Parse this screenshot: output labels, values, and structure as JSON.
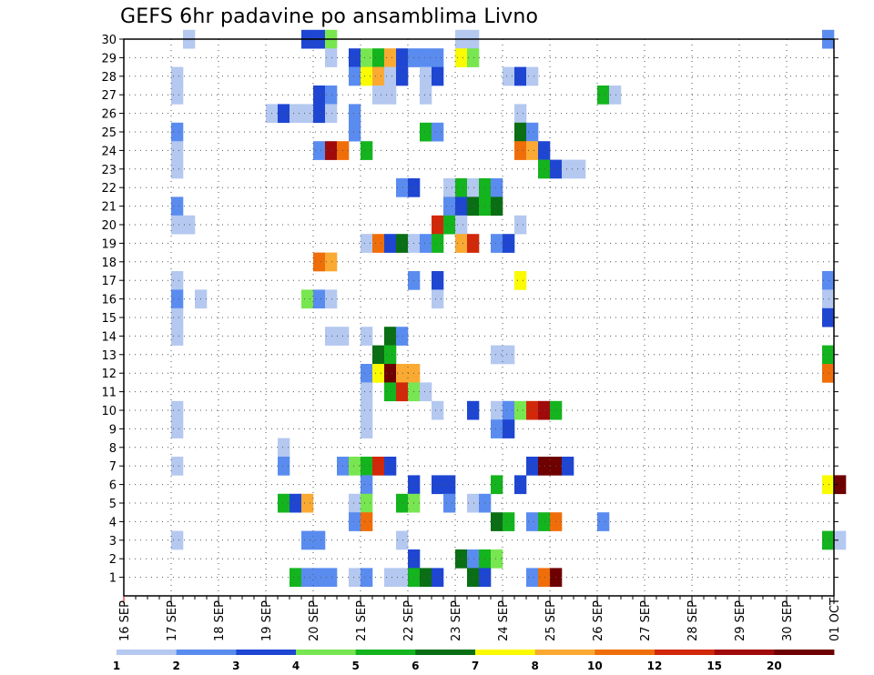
{
  "chart_data": {
    "type": "heatmap",
    "title": "GEFS 6hr padavine po ansamblima Livno",
    "xlabel": "",
    "ylabel": "",
    "x_tick_labels": [
      "16 SEP",
      "17 SEP",
      "18 SEP",
      "19 SEP",
      "20 SEP",
      "21 SEP",
      "22 SEP",
      "23 SEP",
      "24 SEP",
      "25 SEP",
      "26 SEP",
      "27 SEP",
      "28 SEP",
      "29 SEP",
      "30 SEP",
      "01 OCT"
    ],
    "y_tick_labels": [
      "1",
      "2",
      "3",
      "4",
      "5",
      "6",
      "7",
      "8",
      "9",
      "10",
      "11",
      "12",
      "13",
      "14",
      "15",
      "16",
      "17",
      "18",
      "19",
      "20",
      "21",
      "22",
      "23",
      "24",
      "25",
      "26",
      "27",
      "28",
      "29",
      "30"
    ],
    "ylim": [
      0,
      30
    ],
    "steps_per_day": 4,
    "step_hours": 6,
    "grid": "dotted",
    "colorbar": {
      "position": "bottom",
      "tick_labels": [
        "1",
        "2",
        "3",
        "4",
        "5",
        "6",
        "7",
        "8",
        "10",
        "12",
        "15",
        "20"
      ],
      "colors": [
        "#b4c8f0",
        "#5a8cf0",
        "#1e46d2",
        "#78e650",
        "#14b41e",
        "#0a6e14",
        "#fafa00",
        "#faaa32",
        "#f06e0a",
        "#d2280a",
        "#a00a0a",
        "#6e0000"
      ]
    },
    "cells": [
      {
        "member": 30,
        "step": 5,
        "level": 1
      },
      {
        "member": 30,
        "step": 15,
        "level": 3
      },
      {
        "member": 30,
        "step": 16,
        "level": 3
      },
      {
        "member": 30,
        "step": 17,
        "level": 4
      },
      {
        "member": 30,
        "step": 28,
        "level": 1
      },
      {
        "member": 30,
        "step": 29,
        "level": 1
      },
      {
        "member": 30,
        "step": 59,
        "level": 2
      },
      {
        "member": 29,
        "step": 17,
        "level": 1
      },
      {
        "member": 29,
        "step": 19,
        "level": 3
      },
      {
        "member": 29,
        "step": 20,
        "level": 4
      },
      {
        "member": 29,
        "step": 21,
        "level": 5
      },
      {
        "member": 29,
        "step": 22,
        "level": 8
      },
      {
        "member": 29,
        "step": 23,
        "level": 3
      },
      {
        "member": 29,
        "step": 24,
        "level": 2
      },
      {
        "member": 29,
        "step": 25,
        "level": 2
      },
      {
        "member": 29,
        "step": 26,
        "level": 2
      },
      {
        "member": 29,
        "step": 28,
        "level": 7
      },
      {
        "member": 29,
        "step": 29,
        "level": 4
      },
      {
        "member": 28,
        "step": 4,
        "level": 1
      },
      {
        "member": 28,
        "step": 19,
        "level": 2
      },
      {
        "member": 28,
        "step": 20,
        "level": 7
      },
      {
        "member": 28,
        "step": 21,
        "level": 8
      },
      {
        "member": 28,
        "step": 22,
        "level": 1
      },
      {
        "member": 28,
        "step": 23,
        "level": 3
      },
      {
        "member": 28,
        "step": 25,
        "level": 1
      },
      {
        "member": 28,
        "step": 26,
        "level": 3
      },
      {
        "member": 28,
        "step": 32,
        "level": 1
      },
      {
        "member": 28,
        "step": 33,
        "level": 3
      },
      {
        "member": 28,
        "step": 34,
        "level": 1
      },
      {
        "member": 27,
        "step": 4,
        "level": 1
      },
      {
        "member": 27,
        "step": 16,
        "level": 3
      },
      {
        "member": 27,
        "step": 17,
        "level": 2
      },
      {
        "member": 27,
        "step": 21,
        "level": 1
      },
      {
        "member": 27,
        "step": 22,
        "level": 1
      },
      {
        "member": 27,
        "step": 25,
        "level": 1
      },
      {
        "member": 27,
        "step": 40,
        "level": 5
      },
      {
        "member": 27,
        "step": 41,
        "level": 1
      },
      {
        "member": 26,
        "step": 12,
        "level": 1
      },
      {
        "member": 26,
        "step": 13,
        "level": 3
      },
      {
        "member": 26,
        "step": 14,
        "level": 1
      },
      {
        "member": 26,
        "step": 15,
        "level": 1
      },
      {
        "member": 26,
        "step": 16,
        "level": 3
      },
      {
        "member": 26,
        "step": 17,
        "level": 1
      },
      {
        "member": 26,
        "step": 19,
        "level": 2
      },
      {
        "member": 26,
        "step": 33,
        "level": 1
      },
      {
        "member": 25,
        "step": 4,
        "level": 2
      },
      {
        "member": 25,
        "step": 19,
        "level": 2
      },
      {
        "member": 25,
        "step": 25,
        "level": 5
      },
      {
        "member": 25,
        "step": 26,
        "level": 2
      },
      {
        "member": 25,
        "step": 33,
        "level": 6
      },
      {
        "member": 25,
        "step": 34,
        "level": 2
      },
      {
        "member": 24,
        "step": 4,
        "level": 1
      },
      {
        "member": 24,
        "step": 16,
        "level": 2
      },
      {
        "member": 24,
        "step": 17,
        "level": 11
      },
      {
        "member": 24,
        "step": 18,
        "level": 9
      },
      {
        "member": 24,
        "step": 20,
        "level": 5
      },
      {
        "member": 24,
        "step": 33,
        "level": 9
      },
      {
        "member": 24,
        "step": 34,
        "level": 8
      },
      {
        "member": 24,
        "step": 35,
        "level": 3
      },
      {
        "member": 23,
        "step": 4,
        "level": 1
      },
      {
        "member": 23,
        "step": 35,
        "level": 5
      },
      {
        "member": 23,
        "step": 36,
        "level": 3
      },
      {
        "member": 23,
        "step": 37,
        "level": 1
      },
      {
        "member": 23,
        "step": 38,
        "level": 1
      },
      {
        "member": 22,
        "step": 23,
        "level": 2
      },
      {
        "member": 22,
        "step": 24,
        "level": 3
      },
      {
        "member": 22,
        "step": 27,
        "level": 1
      },
      {
        "member": 22,
        "step": 28,
        "level": 5
      },
      {
        "member": 22,
        "step": 29,
        "level": 1
      },
      {
        "member": 22,
        "step": 30,
        "level": 5
      },
      {
        "member": 22,
        "step": 31,
        "level": 2
      },
      {
        "member": 21,
        "step": 4,
        "level": 2
      },
      {
        "member": 21,
        "step": 27,
        "level": 2
      },
      {
        "member": 21,
        "step": 28,
        "level": 3
      },
      {
        "member": 21,
        "step": 29,
        "level": 6
      },
      {
        "member": 21,
        "step": 30,
        "level": 5
      },
      {
        "member": 21,
        "step": 31,
        "level": 6
      },
      {
        "member": 20,
        "step": 4,
        "level": 1
      },
      {
        "member": 20,
        "step": 5,
        "level": 1
      },
      {
        "member": 20,
        "step": 26,
        "level": 10
      },
      {
        "member": 20,
        "step": 27,
        "level": 5
      },
      {
        "member": 20,
        "step": 28,
        "level": 1
      },
      {
        "member": 20,
        "step": 33,
        "level": 1
      },
      {
        "member": 19,
        "step": 20,
        "level": 1
      },
      {
        "member": 19,
        "step": 21,
        "level": 9
      },
      {
        "member": 19,
        "step": 22,
        "level": 3
      },
      {
        "member": 19,
        "step": 23,
        "level": 6
      },
      {
        "member": 19,
        "step": 24,
        "level": 1
      },
      {
        "member": 19,
        "step": 25,
        "level": 2
      },
      {
        "member": 19,
        "step": 26,
        "level": 5
      },
      {
        "member": 19,
        "step": 28,
        "level": 8
      },
      {
        "member": 19,
        "step": 29,
        "level": 10
      },
      {
        "member": 19,
        "step": 31,
        "level": 2
      },
      {
        "member": 19,
        "step": 32,
        "level": 3
      },
      {
        "member": 18,
        "step": 16,
        "level": 9
      },
      {
        "member": 18,
        "step": 17,
        "level": 8
      },
      {
        "member": 17,
        "step": 4,
        "level": 1
      },
      {
        "member": 17,
        "step": 24,
        "level": 2
      },
      {
        "member": 17,
        "step": 26,
        "level": 3
      },
      {
        "member": 17,
        "step": 33,
        "level": 7
      },
      {
        "member": 17,
        "step": 59,
        "level": 2
      },
      {
        "member": 16,
        "step": 4,
        "level": 2
      },
      {
        "member": 16,
        "step": 6,
        "level": 1
      },
      {
        "member": 16,
        "step": 15,
        "level": 4
      },
      {
        "member": 16,
        "step": 16,
        "level": 2
      },
      {
        "member": 16,
        "step": 17,
        "level": 1
      },
      {
        "member": 16,
        "step": 26,
        "level": 1
      },
      {
        "member": 16,
        "step": 59,
        "level": 1
      },
      {
        "member": 15,
        "step": 4,
        "level": 1
      },
      {
        "member": 15,
        "step": 59,
        "level": 3
      },
      {
        "member": 14,
        "step": 4,
        "level": 1
      },
      {
        "member": 14,
        "step": 17,
        "level": 1
      },
      {
        "member": 14,
        "step": 18,
        "level": 1
      },
      {
        "member": 14,
        "step": 20,
        "level": 1
      },
      {
        "member": 14,
        "step": 22,
        "level": 6
      },
      {
        "member": 14,
        "step": 23,
        "level": 2
      },
      {
        "member": 13,
        "step": 21,
        "level": 6
      },
      {
        "member": 13,
        "step": 22,
        "level": 5
      },
      {
        "member": 13,
        "step": 31,
        "level": 1
      },
      {
        "member": 13,
        "step": 32,
        "level": 1
      },
      {
        "member": 13,
        "step": 59,
        "level": 5
      },
      {
        "member": 12,
        "step": 20,
        "level": 2
      },
      {
        "member": 12,
        "step": 21,
        "level": 7
      },
      {
        "member": 12,
        "step": 22,
        "level": 12
      },
      {
        "member": 12,
        "step": 23,
        "level": 8
      },
      {
        "member": 12,
        "step": 24,
        "level": 8
      },
      {
        "member": 12,
        "step": 59,
        "level": 9
      },
      {
        "member": 11,
        "step": 20,
        "level": 1
      },
      {
        "member": 11,
        "step": 22,
        "level": 5
      },
      {
        "member": 11,
        "step": 23,
        "level": 10
      },
      {
        "member": 11,
        "step": 24,
        "level": 4
      },
      {
        "member": 11,
        "step": 25,
        "level": 1
      },
      {
        "member": 10,
        "step": 4,
        "level": 1
      },
      {
        "member": 10,
        "step": 20,
        "level": 1
      },
      {
        "member": 10,
        "step": 26,
        "level": 1
      },
      {
        "member": 10,
        "step": 29,
        "level": 3
      },
      {
        "member": 10,
        "step": 31,
        "level": 1
      },
      {
        "member": 10,
        "step": 32,
        "level": 2
      },
      {
        "member": 10,
        "step": 33,
        "level": 4
      },
      {
        "member": 10,
        "step": 34,
        "level": 10
      },
      {
        "member": 10,
        "step": 35,
        "level": 11
      },
      {
        "member": 10,
        "step": 36,
        "level": 5
      },
      {
        "member": 9,
        "step": 4,
        "level": 1
      },
      {
        "member": 9,
        "step": 20,
        "level": 1
      },
      {
        "member": 9,
        "step": 31,
        "level": 2
      },
      {
        "member": 9,
        "step": 32,
        "level": 3
      },
      {
        "member": 8,
        "step": 13,
        "level": 1
      },
      {
        "member": 7,
        "step": 4,
        "level": 1
      },
      {
        "member": 7,
        "step": 13,
        "level": 2
      },
      {
        "member": 7,
        "step": 18,
        "level": 2
      },
      {
        "member": 7,
        "step": 19,
        "level": 4
      },
      {
        "member": 7,
        "step": 20,
        "level": 5
      },
      {
        "member": 7,
        "step": 21,
        "level": 10
      },
      {
        "member": 7,
        "step": 22,
        "level": 3
      },
      {
        "member": 7,
        "step": 34,
        "level": 3
      },
      {
        "member": 7,
        "step": 35,
        "level": 12
      },
      {
        "member": 7,
        "step": 36,
        "level": 12
      },
      {
        "member": 7,
        "step": 37,
        "level": 3
      },
      {
        "member": 6,
        "step": 20,
        "level": 2
      },
      {
        "member": 6,
        "step": 24,
        "level": 3
      },
      {
        "member": 6,
        "step": 26,
        "level": 3
      },
      {
        "member": 6,
        "step": 27,
        "level": 3
      },
      {
        "member": 6,
        "step": 31,
        "level": 5
      },
      {
        "member": 6,
        "step": 33,
        "level": 3
      },
      {
        "member": 6,
        "step": 59,
        "level": 7
      },
      {
        "member": 6,
        "step": 60,
        "level": 12
      },
      {
        "member": 5,
        "step": 13,
        "level": 5
      },
      {
        "member": 5,
        "step": 14,
        "level": 3
      },
      {
        "member": 5,
        "step": 15,
        "level": 8
      },
      {
        "member": 5,
        "step": 19,
        "level": 1
      },
      {
        "member": 5,
        "step": 20,
        "level": 4
      },
      {
        "member": 5,
        "step": 23,
        "level": 5
      },
      {
        "member": 5,
        "step": 24,
        "level": 4
      },
      {
        "member": 5,
        "step": 27,
        "level": 2
      },
      {
        "member": 5,
        "step": 29,
        "level": 1
      },
      {
        "member": 5,
        "step": 30,
        "level": 2
      },
      {
        "member": 4,
        "step": 19,
        "level": 2
      },
      {
        "member": 4,
        "step": 20,
        "level": 9
      },
      {
        "member": 4,
        "step": 31,
        "level": 6
      },
      {
        "member": 4,
        "step": 32,
        "level": 5
      },
      {
        "member": 4,
        "step": 34,
        "level": 2
      },
      {
        "member": 4,
        "step": 35,
        "level": 5
      },
      {
        "member": 4,
        "step": 36,
        "level": 9
      },
      {
        "member": 4,
        "step": 40,
        "level": 2
      },
      {
        "member": 3,
        "step": 4,
        "level": 1
      },
      {
        "member": 3,
        "step": 15,
        "level": 2
      },
      {
        "member": 3,
        "step": 16,
        "level": 2
      },
      {
        "member": 3,
        "step": 23,
        "level": 1
      },
      {
        "member": 3,
        "step": 59,
        "level": 5
      },
      {
        "member": 3,
        "step": 60,
        "level": 1
      },
      {
        "member": 2,
        "step": 24,
        "level": 3
      },
      {
        "member": 2,
        "step": 28,
        "level": 6
      },
      {
        "member": 2,
        "step": 29,
        "level": 2
      },
      {
        "member": 2,
        "step": 30,
        "level": 5
      },
      {
        "member": 2,
        "step": 31,
        "level": 4
      },
      {
        "member": 1,
        "step": 14,
        "level": 5
      },
      {
        "member": 1,
        "step": 15,
        "level": 2
      },
      {
        "member": 1,
        "step": 16,
        "level": 2
      },
      {
        "member": 1,
        "step": 17,
        "level": 2
      },
      {
        "member": 1,
        "step": 19,
        "level": 1
      },
      {
        "member": 1,
        "step": 20,
        "level": 2
      },
      {
        "member": 1,
        "step": 22,
        "level": 1
      },
      {
        "member": 1,
        "step": 23,
        "level": 1
      },
      {
        "member": 1,
        "step": 24,
        "level": 5
      },
      {
        "member": 1,
        "step": 25,
        "level": 6
      },
      {
        "member": 1,
        "step": 26,
        "level": 3
      },
      {
        "member": 1,
        "step": 29,
        "level": 6
      },
      {
        "member": 1,
        "step": 30,
        "level": 3
      },
      {
        "member": 1,
        "step": 34,
        "level": 2
      },
      {
        "member": 1,
        "step": 35,
        "level": 9
      },
      {
        "member": 1,
        "step": 36,
        "level": 12
      }
    ]
  }
}
